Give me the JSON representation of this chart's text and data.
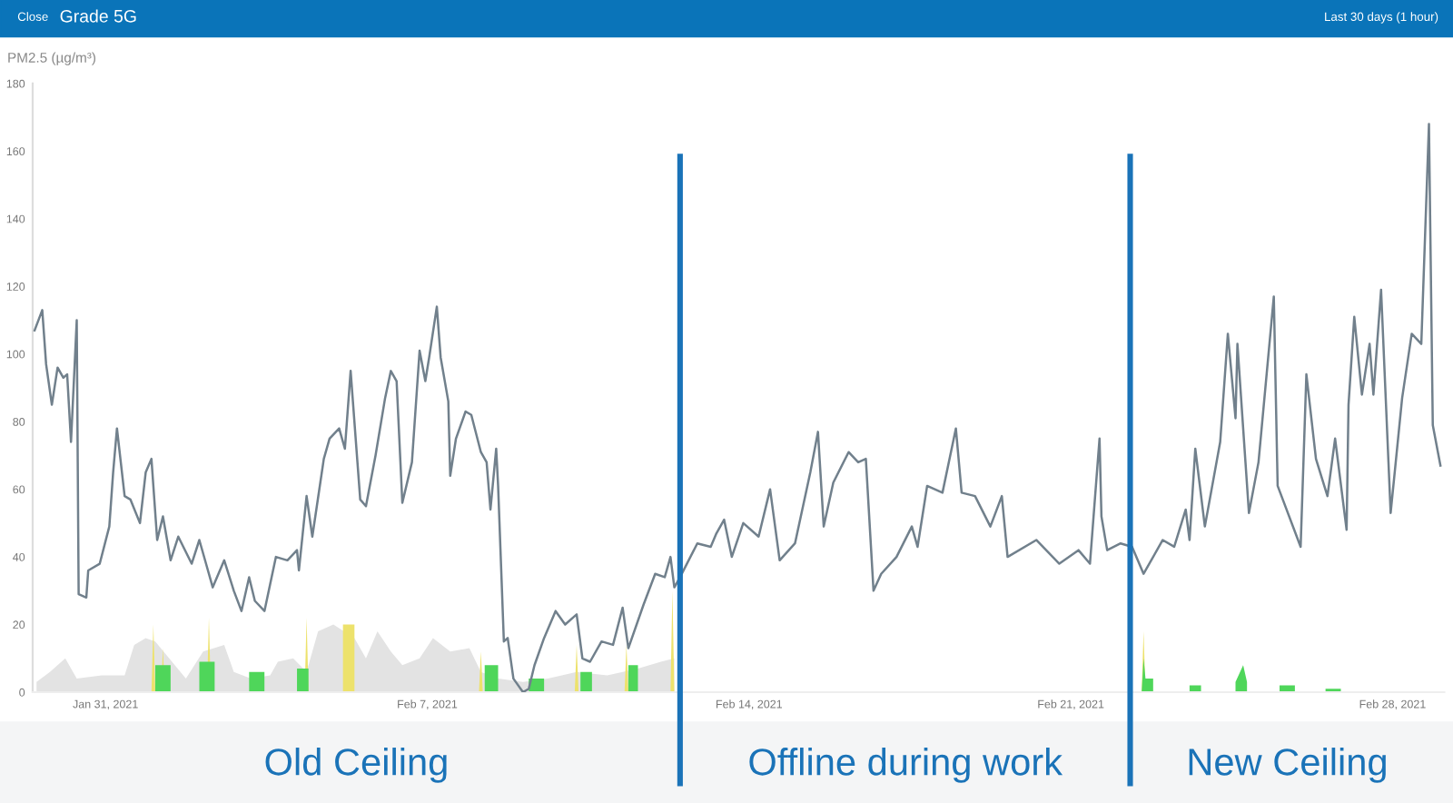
{
  "chart_data": {
    "type": "line",
    "ylabel": "PM2.5 (µg/m³)",
    "annotations": [
      "Close",
      "Grade 5G",
      "Last 30 days (1 hour)",
      "Old Ceiling",
      "Offline during work",
      "New Ceiling"
    ],
    "xlim": [
      "2021-01-29T10:00",
      "2021-03-01T03:00"
    ],
    "xticks": [
      {
        "value": "2021-01-31",
        "label": "Jan 31, 2021"
      },
      {
        "value": "2021-02-07",
        "label": "Feb 7, 2021"
      },
      {
        "value": "2021-02-14",
        "label": "Feb 14, 2021"
      },
      {
        "value": "2021-02-21",
        "label": "Feb 21, 2021"
      },
      {
        "value": "2021-02-28",
        "label": "Feb 28, 2021"
      }
    ],
    "ylim": [
      0,
      180
    ],
    "yticks": [
      0,
      20,
      40,
      60,
      80,
      100,
      120,
      140,
      160,
      180
    ],
    "grid": false,
    "legend": false,
    "ref_lines": [
      {
        "axis": "x",
        "value": "2021-02-12T12:00",
        "color": "#1a73b8"
      },
      {
        "axis": "x",
        "value": "2021-02-22T07:00",
        "color": "#1a73b8"
      }
    ],
    "series": [
      {
        "type": "area",
        "color": "#e3e3e3",
        "x": [
          "2021-01-29T12:00",
          "2021-01-29T19:00",
          "2021-01-30T03:00",
          "2021-01-30T09:00",
          "2021-01-30T22:00",
          "2021-01-31T10:00",
          "2021-01-31T15:00",
          "2021-01-31T21:00",
          "2021-02-01T02:00",
          "2021-02-01T18:00",
          "2021-02-02T03:00",
          "2021-02-02T14:00",
          "2021-02-02T19:00",
          "2021-02-03T04:00",
          "2021-02-03T14:00",
          "2021-02-03T18:00",
          "2021-02-04T02:00",
          "2021-02-04T09:00",
          "2021-02-04T15:00",
          "2021-02-04T23:00",
          "2021-02-05T10:00",
          "2021-02-05T16:00",
          "2021-02-05T22:00",
          "2021-02-06T05:00",
          "2021-02-06T11:00",
          "2021-02-06T20:00",
          "2021-02-07T03:00",
          "2021-02-07T12:00",
          "2021-02-07T22:00",
          "2021-02-08T04:00",
          "2021-02-08T13:00",
          "2021-02-09T02:00",
          "2021-02-09T15:00",
          "2021-02-10T06:00",
          "2021-02-10T22:00",
          "2021-02-11T14:00",
          "2021-02-12T02:00",
          "2021-02-12T09:00"
        ],
        "values": [
          3,
          6,
          10,
          4,
          5,
          5,
          14,
          16,
          15,
          4,
          12,
          14,
          6,
          4,
          5,
          9,
          10,
          6,
          18,
          20,
          16,
          10,
          18,
          12,
          8,
          10,
          16,
          12,
          13,
          6,
          4,
          3,
          4,
          6,
          5,
          7,
          9,
          10
        ]
      },
      {
        "type": "area",
        "color": "#ede26c",
        "x": [
          "2021-02-01T00:00",
          "2021-02-01T01:00",
          "2021-02-01T02:00",
          "2021-02-01T05:00",
          "2021-02-01T06:00",
          "2021-02-01T07:00",
          "2021-02-02T05:00",
          "2021-02-02T06:00",
          "2021-02-02T07:00",
          "2021-02-04T08:00",
          "2021-02-04T09:00",
          "2021-02-04T10:00",
          "2021-02-05T04:00",
          "2021-02-05T04:00",
          "2021-02-05T10:00",
          "2021-02-05T10:00",
          "2021-02-08T03:00",
          "2021-02-08T04:00",
          "2021-02-08T05:00",
          "2021-02-10T05:00",
          "2021-02-10T06:00",
          "2021-02-10T07:00",
          "2021-02-11T07:00",
          "2021-02-11T08:00",
          "2021-02-11T09:00",
          "2021-02-12T07:00",
          "2021-02-12T08:00",
          "2021-02-12T09:00",
          "2021-02-22T13:00",
          "2021-02-22T14:00",
          "2021-02-22T15:00"
        ],
        "values": [
          0,
          20,
          0,
          0,
          13,
          0,
          0,
          22,
          0,
          0,
          22,
          0,
          0,
          20,
          20,
          0,
          0,
          12,
          0,
          0,
          14,
          0,
          0,
          14,
          0,
          0,
          30,
          0,
          0,
          18,
          0
        ]
      },
      {
        "type": "area",
        "color": "#4fd65a",
        "x": [
          "2021-02-01T02:00",
          "2021-02-01T02:00",
          "2021-02-01T10:00",
          "2021-02-01T10:00",
          "2021-02-02T01:00",
          "2021-02-02T01:00",
          "2021-02-02T09:00",
          "2021-02-02T09:00",
          "2021-02-03T03:00",
          "2021-02-03T03:00",
          "2021-02-03T11:00",
          "2021-02-03T11:00",
          "2021-02-04T04:00",
          "2021-02-04T04:00",
          "2021-02-04T10:00",
          "2021-02-04T10:00",
          "2021-02-08T06:00",
          "2021-02-08T06:00",
          "2021-02-08T13:00",
          "2021-02-08T13:00",
          "2021-02-09T05:00",
          "2021-02-09T05:00",
          "2021-02-09T13:00",
          "2021-02-09T13:00",
          "2021-02-10T08:00",
          "2021-02-10T08:00",
          "2021-02-10T14:00",
          "2021-02-10T14:00",
          "2021-02-11T09:00",
          "2021-02-11T09:00",
          "2021-02-11T14:00",
          "2021-02-11T14:00",
          "2021-02-22T13:00",
          "2021-02-22T14:00",
          "2021-02-22T15:00",
          "2021-02-22T19:00",
          "2021-02-22T19:00",
          "2021-02-23T14:00",
          "2021-02-23T14:00",
          "2021-02-23T20:00",
          "2021-02-23T20:00",
          "2021-02-24T14:00",
          "2021-02-24T14:00",
          "2021-02-24T18:00",
          "2021-02-24T20:00",
          "2021-02-24T20:00",
          "2021-02-25T13:00",
          "2021-02-25T13:00",
          "2021-02-25T21:00",
          "2021-02-25T21:00",
          "2021-02-26T13:00",
          "2021-02-26T13:00",
          "2021-02-26T21:00",
          "2021-02-26T21:00"
        ],
        "values": [
          0,
          8,
          8,
          0,
          0,
          9,
          9,
          0,
          0,
          6,
          6,
          0,
          0,
          7,
          7,
          0,
          0,
          8,
          8,
          0,
          0,
          4,
          4,
          0,
          0,
          6,
          6,
          0,
          0,
          8,
          8,
          0,
          0,
          10,
          4,
          4,
          0,
          0,
          2,
          2,
          0,
          0,
          3,
          8,
          3,
          0,
          0,
          2,
          2,
          0,
          0,
          1,
          1,
          0
        ]
      },
      {
        "color": "#71808c",
        "x": [
          "2021-01-29T11:00",
          "2021-01-29T15:00",
          "2021-01-29T17:00",
          "2021-01-29T20:00",
          "2021-01-29T23:00",
          "2021-01-30T02:00",
          "2021-01-30T04:00",
          "2021-01-30T06:00",
          "2021-01-30T09:00",
          "2021-01-30T10:00",
          "2021-01-30T14:00",
          "2021-01-30T15:00",
          "2021-01-30T21:00",
          "2021-01-31T02:00",
          "2021-01-31T04:00",
          "2021-01-31T06:00",
          "2021-01-31T10:00",
          "2021-01-31T13:00",
          "2021-01-31T18:00",
          "2021-01-31T21:00",
          "2021-02-01T00:00",
          "2021-02-01T03:00",
          "2021-02-01T06:00",
          "2021-02-01T10:00",
          "2021-02-01T14:00",
          "2021-02-01T21:00",
          "2021-02-02T01:00",
          "2021-02-02T05:00",
          "2021-02-02T08:00",
          "2021-02-02T14:00",
          "2021-02-02T19:00",
          "2021-02-02T23:00",
          "2021-02-03T03:00",
          "2021-02-03T06:00",
          "2021-02-03T11:00",
          "2021-02-03T17:00",
          "2021-02-03T23:00",
          "2021-02-04T04:00",
          "2021-02-04T05:00",
          "2021-02-04T09:00",
          "2021-02-04T12:00",
          "2021-02-04T18:00",
          "2021-02-04T21:00",
          "2021-02-05T02:00",
          "2021-02-05T05:00",
          "2021-02-05T08:00",
          "2021-02-05T13:00",
          "2021-02-05T16:00",
          "2021-02-05T21:00",
          "2021-02-06T02:00",
          "2021-02-06T05:00",
          "2021-02-06T08:00",
          "2021-02-06T11:00",
          "2021-02-06T16:00",
          "2021-02-06T20:00",
          "2021-02-06T23:00",
          "2021-02-07T01:00",
          "2021-02-07T05:00",
          "2021-02-07T07:00",
          "2021-02-07T11:00",
          "2021-02-07T12:00",
          "2021-02-07T15:00",
          "2021-02-07T20:00",
          "2021-02-07T23:00",
          "2021-02-08T04:00",
          "2021-02-08T07:00",
          "2021-02-08T09:00",
          "2021-02-08T12:00",
          "2021-02-08T13:00",
          "2021-02-08T16:00",
          "2021-02-08T18:00",
          "2021-02-08T21:00",
          "2021-02-09T02:00",
          "2021-02-09T05:00",
          "2021-02-09T08:00",
          "2021-02-09T13:00",
          "2021-02-09T19:00",
          "2021-02-10T00:00",
          "2021-02-10T06:00",
          "2021-02-10T09:00",
          "2021-02-10T13:00",
          "2021-02-10T19:00",
          "2021-02-11T01:00",
          "2021-02-11T06:00",
          "2021-02-11T09:00",
          "2021-02-11T17:00",
          "2021-02-11T23:00",
          "2021-02-12T04:00",
          "2021-02-12T07:00",
          "2021-02-12T09:00",
          "2021-02-12T12:00",
          "2021-02-12T21:00",
          "2021-02-13T04:00",
          "2021-02-13T07:00",
          "2021-02-13T11:00",
          "2021-02-13T15:00",
          "2021-02-13T21:00",
          "2021-02-14T05:00",
          "2021-02-14T11:00",
          "2021-02-14T16:00",
          "2021-02-15T00:00",
          "2021-02-15T08:00",
          "2021-02-15T12:00",
          "2021-02-15T15:00",
          "2021-02-15T20:00",
          "2021-02-16T04:00",
          "2021-02-16T09:00",
          "2021-02-16T13:00",
          "2021-02-16T17:00",
          "2021-02-16T21:00",
          "2021-02-17T05:00",
          "2021-02-17T13:00",
          "2021-02-17T16:00",
          "2021-02-17T21:00",
          "2021-02-18T05:00",
          "2021-02-18T12:00",
          "2021-02-18T15:00",
          "2021-02-18T22:00",
          "2021-02-19T06:00",
          "2021-02-19T12:00",
          "2021-02-19T15:00",
          "2021-02-20T06:00",
          "2021-02-20T18:00",
          "2021-02-21T04:00",
          "2021-02-21T10:00",
          "2021-02-21T15:00",
          "2021-02-21T16:00",
          "2021-02-21T19:00",
          "2021-02-22T02:00",
          "2021-02-22T08:00",
          "2021-02-22T14:00",
          "2021-02-23T00:00",
          "2021-02-23T06:00",
          "2021-02-23T12:00",
          "2021-02-23T14:00",
          "2021-02-23T17:00",
          "2021-02-23T22:00",
          "2021-02-24T06:00",
          "2021-02-24T10:00",
          "2021-02-24T14:00",
          "2021-02-24T15:00",
          "2021-02-24T21:00",
          "2021-02-25T02:00",
          "2021-02-25T10:00",
          "2021-02-25T12:00",
          "2021-02-26T00:00",
          "2021-02-26T03:00",
          "2021-02-26T08:00",
          "2021-02-26T14:00",
          "2021-02-26T18:00",
          "2021-02-27T00:00",
          "2021-02-27T01:00",
          "2021-02-27T04:00",
          "2021-02-27T08:00",
          "2021-02-27T12:00",
          "2021-02-27T14:00",
          "2021-02-27T18:00",
          "2021-02-27T23:00",
          "2021-02-28T05:00",
          "2021-02-28T10:00",
          "2021-02-28T15:00",
          "2021-02-28T19:00",
          "2021-02-28T21:00",
          "2021-03-01T01:00"
        ],
        "values": [
          107,
          113,
          97,
          85,
          96,
          93,
          94,
          74,
          110,
          29,
          28,
          36,
          38,
          49,
          65,
          78,
          58,
          57,
          50,
          65,
          69,
          45,
          52,
          39,
          46,
          38,
          45,
          37,
          31,
          39,
          30,
          24,
          34,
          27,
          24,
          40,
          39,
          42,
          36,
          58,
          46,
          69,
          75,
          78,
          72,
          95,
          57,
          55,
          70,
          87,
          95,
          92,
          56,
          68,
          101,
          92,
          99,
          114,
          99,
          86,
          64,
          75,
          83,
          82,
          71,
          68,
          54,
          72,
          61,
          15,
          16,
          4,
          0,
          1,
          8,
          16,
          24,
          20,
          23,
          10,
          9,
          15,
          14,
          25,
          13,
          26,
          35,
          34,
          40,
          31,
          34,
          44,
          43,
          47,
          51,
          40,
          50,
          46,
          60,
          39,
          44,
          65,
          77,
          49,
          62,
          71,
          68,
          69,
          30,
          35,
          40,
          49,
          43,
          61,
          59,
          78,
          59,
          58,
          49,
          58,
          40,
          45,
          38,
          42,
          38,
          75,
          52,
          42,
          44,
          43,
          35,
          45,
          43,
          54,
          45,
          72,
          49,
          74,
          106,
          81,
          103,
          53,
          68,
          117,
          61,
          43,
          94,
          69,
          58,
          75,
          48,
          85,
          111,
          88,
          103,
          88,
          119,
          53,
          87,
          106,
          103,
          168,
          79,
          67
        ]
      }
    ]
  }
}
